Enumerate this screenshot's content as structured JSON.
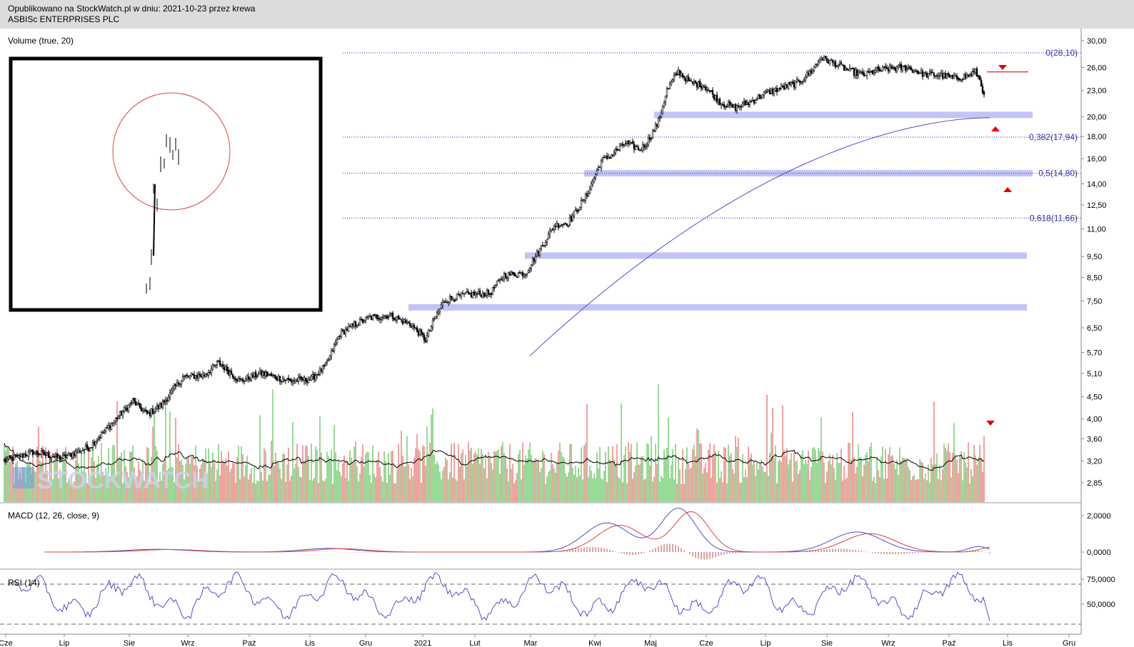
{
  "header": {
    "line1": "Opublikowano na StockWatch.pl w dniu: 2021-10-23 przez krewa",
    "line2": "ASBISc ENTERPRISES PLC"
  },
  "watermark": "STOCKWATCH",
  "colors": {
    "up": "#00aa00",
    "down": "#dd0000",
    "vol_up": "#7fd17f",
    "vol_down": "#f28a8a",
    "fib": "#3333aa",
    "zone": "#c3c3f5",
    "sma": "#4f4fcf",
    "macd": "#4f4fcf",
    "signal": "#dd4444",
    "marker": "#e60000"
  },
  "chart_data": [
    {
      "type": "candlestick",
      "ylog": true,
      "ylim": [
        2.6,
        31.5
      ],
      "yticks": [
        "30,00",
        "26,00",
        "23,00",
        "20,00",
        "18,00",
        "16,00",
        "14,00",
        "12,50",
        "11,00",
        "9,50",
        "8,50",
        "7,50",
        "6,50",
        "5,70",
        "5,10",
        "4,50",
        "4,00",
        "3,60",
        "3,20",
        "2,85"
      ],
      "ytick_values": [
        30,
        26,
        23,
        20,
        18,
        16,
        14,
        12.5,
        11,
        9.5,
        8.5,
        7.5,
        6.5,
        5.7,
        5.1,
        4.5,
        4.0,
        3.6,
        3.2,
        2.85
      ],
      "xticks": [
        "Cze",
        "Lip",
        "Sie",
        "Wrz",
        "Paź",
        "Lis",
        "Gru",
        "2021",
        "Lut",
        "Mar",
        "Kwi",
        "Maj",
        "Cze",
        "Lip",
        "Sie",
        "Wrz",
        "Paź",
        "Lis",
        "Gru"
      ],
      "anchors": [
        [
          0,
          3.2
        ],
        [
          20,
          3.35
        ],
        [
          40,
          3.25
        ],
        [
          60,
          3.45
        ],
        [
          75,
          3.9
        ],
        [
          90,
          4.4
        ],
        [
          100,
          4.1
        ],
        [
          110,
          4.3
        ],
        [
          125,
          5.0
        ],
        [
          140,
          5.05
        ],
        [
          150,
          5.4
        ],
        [
          165,
          4.9
        ],
        [
          180,
          5.1
        ],
        [
          200,
          4.9
        ],
        [
          215,
          4.95
        ],
        [
          225,
          5.3
        ],
        [
          235,
          6.3
        ],
        [
          245,
          6.6
        ],
        [
          255,
          6.85
        ],
        [
          270,
          6.95
        ],
        [
          285,
          6.6
        ],
        [
          295,
          6.1
        ],
        [
          302,
          6.9
        ],
        [
          308,
          7.5
        ],
        [
          322,
          7.75
        ],
        [
          340,
          7.8
        ],
        [
          350,
          8.6
        ],
        [
          365,
          8.7
        ],
        [
          372,
          9.5
        ],
        [
          385,
          11.2
        ],
        [
          395,
          11.4
        ],
        [
          408,
          13.2
        ],
        [
          418,
          15.8
        ],
        [
          425,
          16.3
        ],
        [
          435,
          17.4
        ],
        [
          445,
          16.8
        ],
        [
          450,
          17.4
        ],
        [
          458,
          19.5
        ],
        [
          464,
          23.0
        ],
        [
          472,
          25.5
        ],
        [
          480,
          24.0
        ],
        [
          490,
          23.6
        ],
        [
          502,
          21.5
        ],
        [
          512,
          21.0
        ],
        [
          522,
          21.6
        ],
        [
          535,
          22.8
        ],
        [
          548,
          23.5
        ],
        [
          556,
          24.0
        ],
        [
          565,
          25.5
        ],
        [
          572,
          27.4
        ],
        [
          582,
          26.5
        ],
        [
          592,
          25.5
        ],
        [
          602,
          25.0
        ],
        [
          612,
          25.6
        ],
        [
          622,
          25.9
        ],
        [
          632,
          26.0
        ],
        [
          645,
          25.0
        ],
        [
          655,
          25.0
        ],
        [
          665,
          24.5
        ],
        [
          675,
          24.9
        ],
        [
          680,
          25.4
        ],
        [
          683,
          24.4
        ],
        [
          686,
          22.5
        ]
      ],
      "fibonacci": [
        {
          "label": "0(28,10)",
          "value": 28.1
        },
        {
          "label": "0,382(17,94)",
          "value": 17.94
        },
        {
          "label": "0,5(14,80)",
          "value": 14.8
        },
        {
          "label": "0,618(11,66)",
          "value": 11.66
        }
      ],
      "support_zones": [
        20.2,
        14.8,
        9.55,
        7.25
      ],
      "resistance_line": 25.4,
      "sma_trend": {
        "from": [
          20,
          26
        ],
        "to": [
          5.6,
          19.9
        ]
      }
    },
    {
      "type": "bar",
      "title": "Volume (true, 20)",
      "note": "volume histogram with 20-period moving average"
    },
    {
      "type": "line",
      "title": "MACD (12, 26, close, 9)",
      "yticks": [
        "2,0000",
        "0,0000"
      ],
      "ytick_values": [
        2,
        0
      ]
    },
    {
      "type": "line",
      "title": "RSI (14)",
      "yticks": [
        "75,0000",
        "50,0000"
      ],
      "ytick_values": [
        75,
        50
      ],
      "levels": [
        70,
        30
      ]
    }
  ]
}
